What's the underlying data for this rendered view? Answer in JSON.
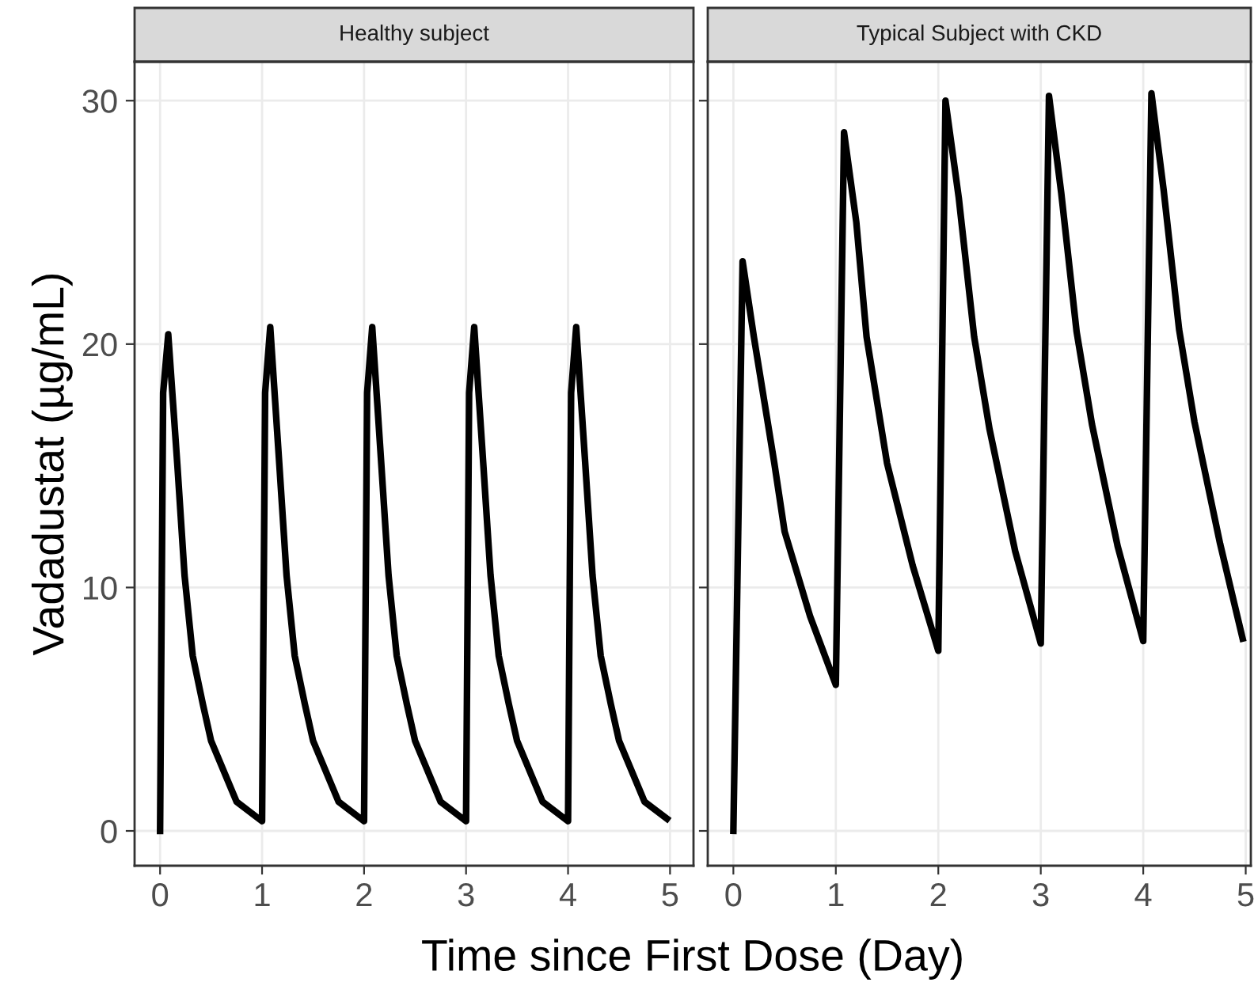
{
  "chart_data": [
    {
      "type": "line",
      "title": "Healthy subject",
      "ylabel": "Vadadustat (µg/mL)",
      "xlabel": "Time since First Dose (Day)",
      "xlim": [
        -0.25,
        5.23
      ],
      "xticks": [
        0,
        1,
        2,
        3,
        4,
        5
      ],
      "ylim": [
        -1.43,
        31.6
      ],
      "yticks": [
        0,
        10,
        20,
        30
      ],
      "grid": true,
      "legend": false,
      "series": [
        {
          "color": "#000000",
          "x": [
            0,
            0.03,
            0.08,
            0.17,
            0.24,
            0.32,
            0.42,
            0.5,
            0.75,
            1.0,
            1.03,
            1.08,
            1.17,
            1.24,
            1.32,
            1.42,
            1.5,
            1.75,
            2.0,
            2.03,
            2.08,
            2.17,
            2.24,
            2.32,
            2.42,
            2.5,
            2.75,
            3.0,
            3.03,
            3.08,
            3.17,
            3.24,
            3.32,
            3.42,
            3.5,
            3.75,
            4.0,
            4.03,
            4.08,
            4.17,
            4.24,
            4.32,
            4.42,
            4.5,
            4.75,
            4.97
          ],
          "values": [
            0,
            18,
            20.4,
            15,
            10.5,
            7.2,
            5.2,
            3.7,
            1.2,
            0.4,
            18,
            20.7,
            15,
            10.5,
            7.2,
            5.2,
            3.7,
            1.2,
            0.4,
            18,
            20.7,
            15,
            10.5,
            7.2,
            5.2,
            3.7,
            1.2,
            0.4,
            18,
            20.7,
            15,
            10.5,
            7.2,
            5.2,
            3.7,
            1.2,
            0.4,
            18,
            20.7,
            15,
            10.5,
            7.2,
            5.2,
            3.7,
            1.2,
            0.5
          ]
        }
      ]
    },
    {
      "type": "line",
      "title": "Typical Subject with CKD",
      "tick_labels": "x",
      "xlim": [
        -0.25,
        5.05
      ],
      "xticks": [
        0,
        1,
        2,
        3,
        4,
        5
      ],
      "ylim": [
        -1.43,
        31.6
      ],
      "yticks": [
        0,
        10,
        20,
        30
      ],
      "grid": true,
      "legend": false,
      "series": [
        {
          "color": "#000000",
          "x": [
            0,
            0.09,
            0.2,
            0.4,
            0.5,
            0.75,
            1.0,
            1.08,
            1.2,
            1.3,
            1.5,
            1.75,
            2.0,
            2.07,
            2.2,
            2.35,
            2.5,
            2.75,
            3.0,
            3.08,
            3.2,
            3.35,
            3.5,
            3.75,
            4.0,
            4.08,
            4.2,
            4.35,
            4.5,
            4.75,
            4.97
          ],
          "values": [
            0,
            23.4,
            20.3,
            15.1,
            12.3,
            8.8,
            6.0,
            28.7,
            25,
            20.3,
            15.1,
            10.9,
            7.4,
            30.0,
            26,
            20.3,
            16.5,
            11.5,
            7.7,
            30.2,
            26.2,
            20.5,
            16.7,
            11.7,
            7.8,
            30.3,
            26.3,
            20.6,
            16.8,
            11.8,
            7.9
          ]
        }
      ]
    }
  ]
}
